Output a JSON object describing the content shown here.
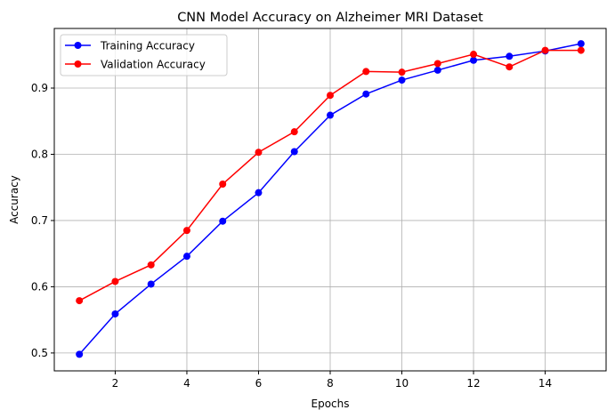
{
  "chart_data": {
    "type": "line",
    "title": "CNN Model Accuracy on Alzheimer MRI Dataset",
    "xlabel": "Epochs",
    "ylabel": "Accuracy",
    "xlim": [
      0.3,
      15.7
    ],
    "ylim": [
      0.473,
      0.99
    ],
    "xticks": [
      2,
      4,
      6,
      8,
      10,
      12,
      14
    ],
    "yticks": [
      0.5,
      0.6,
      0.7,
      0.8,
      0.9
    ],
    "grid": true,
    "legend_position": "top-left",
    "x": [
      1,
      2,
      3,
      4,
      5,
      6,
      7,
      8,
      9,
      10,
      11,
      12,
      13,
      14,
      15
    ],
    "series": [
      {
        "name": "Training Accuracy",
        "color": "#0000ff",
        "marker": "circle",
        "values": [
          0.498,
          0.559,
          0.604,
          0.646,
          0.699,
          0.742,
          0.804,
          0.859,
          0.891,
          0.912,
          0.927,
          0.942,
          0.948,
          0.956,
          0.967
        ]
      },
      {
        "name": "Validation Accuracy",
        "color": "#ff0000",
        "marker": "circle",
        "values": [
          0.579,
          0.608,
          0.633,
          0.685,
          0.755,
          0.803,
          0.834,
          0.889,
          0.925,
          0.924,
          0.937,
          0.951,
          0.932,
          0.957,
          0.957
        ]
      }
    ]
  }
}
